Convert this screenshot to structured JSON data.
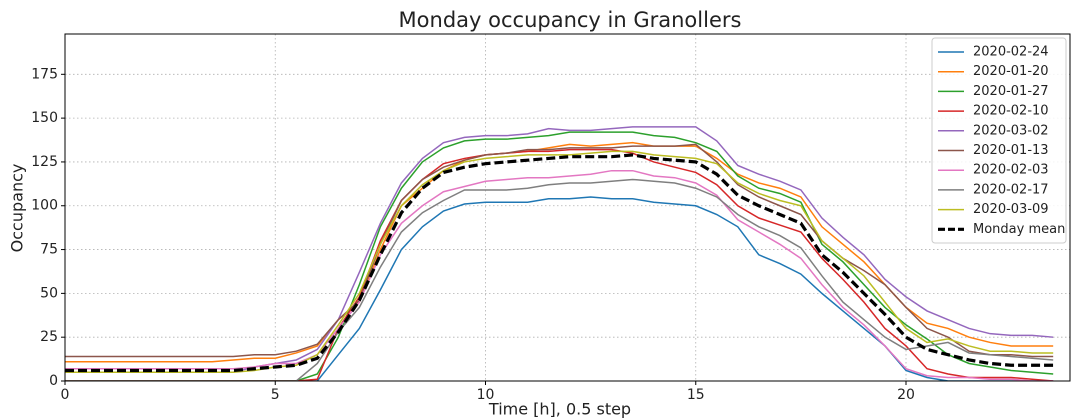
{
  "chart_data": {
    "type": "line",
    "title": "Monday occupancy in Granollers",
    "x_label": "Time [h], 0.5 step",
    "y_label": "Occupancy",
    "x": [
      0,
      0.5,
      1,
      1.5,
      2,
      2.5,
      3,
      3.5,
      4,
      4.5,
      5,
      5.5,
      6,
      6.5,
      7,
      7.5,
      8,
      8.5,
      9,
      9.5,
      10,
      10.5,
      11,
      11.5,
      12,
      12.5,
      13,
      13.5,
      14,
      14.5,
      15,
      15.5,
      16,
      16.5,
      17,
      17.5,
      18,
      18.5,
      19,
      19.5,
      20,
      20.5,
      21,
      21.5,
      22,
      22.5,
      23,
      23.5
    ],
    "xlim": [
      0,
      23.9
    ],
    "xticks": [
      0,
      5,
      10,
      15,
      20
    ],
    "ylim": [
      0,
      198
    ],
    "yticks": [
      0,
      25,
      50,
      75,
      100,
      125,
      150,
      175
    ],
    "grid": true,
    "legend": "upper right",
    "series": [
      {
        "name": "2020-02-24",
        "color": "#1f77b4",
        "values": [
          0,
          0,
          0,
          0,
          0,
          0,
          0,
          0,
          0,
          0,
          0,
          0,
          0,
          15,
          30,
          52,
          75,
          88,
          97,
          101,
          102,
          102,
          102,
          104,
          104,
          105,
          104,
          104,
          102,
          101,
          100,
          95,
          88,
          72,
          67,
          61,
          50,
          40,
          30,
          20,
          6,
          2,
          0,
          0,
          0,
          0,
          0,
          0
        ]
      },
      {
        "name": "2020-01-20",
        "color": "#ff7f0e",
        "values": [
          11,
          11,
          11,
          11,
          11,
          11,
          11,
          11,
          12,
          13,
          13,
          16,
          20,
          35,
          45,
          75,
          100,
          110,
          120,
          126,
          129,
          130,
          131,
          133,
          135,
          134,
          135,
          136,
          134,
          134,
          134,
          127,
          118,
          113,
          110,
          105,
          88,
          78,
          68,
          55,
          42,
          33,
          30,
          25,
          22,
          20,
          20,
          20
        ]
      },
      {
        "name": "2020-01-27",
        "color": "#2ca02c",
        "values": [
          0,
          0,
          0,
          0,
          0,
          0,
          0,
          0,
          0,
          0,
          0,
          0,
          4,
          25,
          55,
          88,
          110,
          125,
          133,
          137,
          138,
          138,
          139,
          140,
          142,
          142,
          142,
          142,
          140,
          139,
          136,
          131,
          117,
          110,
          107,
          102,
          78,
          68,
          55,
          42,
          32,
          24,
          15,
          10,
          8,
          6,
          5,
          4
        ]
      },
      {
        "name": "2020-02-10",
        "color": "#d62728",
        "values": [
          0,
          0,
          0,
          0,
          0,
          0,
          0,
          0,
          0,
          0,
          0,
          0,
          1,
          30,
          48,
          80,
          103,
          115,
          124,
          127,
          129,
          130,
          131,
          131,
          132,
          132,
          132,
          130,
          125,
          122,
          119,
          112,
          100,
          93,
          89,
          85,
          70,
          58,
          45,
          30,
          20,
          7,
          4,
          2,
          2,
          2,
          1,
          0
        ]
      },
      {
        "name": "2020-03-02",
        "color": "#9467bd",
        "values": [
          5,
          5,
          5,
          5,
          5,
          5,
          5,
          5,
          5,
          8,
          10,
          12,
          18,
          35,
          62,
          90,
          113,
          127,
          136,
          139,
          140,
          140,
          141,
          144,
          143,
          143,
          144,
          145,
          145,
          145,
          145,
          137,
          123,
          118,
          114,
          109,
          93,
          82,
          72,
          58,
          48,
          40,
          35,
          30,
          27,
          26,
          26,
          25
        ]
      },
      {
        "name": "2020-01-13",
        "color": "#8c564b",
        "values": [
          14,
          14,
          14,
          14,
          14,
          14,
          14,
          14,
          14,
          15,
          15,
          17,
          21,
          35,
          46,
          78,
          103,
          115,
          122,
          126,
          129,
          130,
          132,
          132,
          133,
          133,
          133,
          134,
          134,
          134,
          135,
          125,
          112,
          105,
          100,
          95,
          80,
          70,
          63,
          55,
          42,
          30,
          25,
          17,
          15,
          15,
          14,
          14
        ]
      },
      {
        "name": "2020-02-03",
        "color": "#e377c2",
        "values": [
          7,
          7,
          7,
          7,
          7,
          7,
          7,
          7,
          7,
          8,
          10,
          10,
          15,
          30,
          45,
          72,
          90,
          100,
          108,
          111,
          114,
          115,
          116,
          116,
          117,
          118,
          120,
          120,
          117,
          116,
          113,
          106,
          92,
          85,
          78,
          70,
          55,
          42,
          32,
          20,
          7,
          3,
          2,
          2,
          1,
          1,
          0,
          0
        ]
      },
      {
        "name": "2020-02-17",
        "color": "#7f7f7f",
        "values": [
          0,
          0,
          0,
          0,
          0,
          0,
          0,
          0,
          0,
          0,
          0,
          0,
          10,
          28,
          42,
          65,
          85,
          96,
          103,
          109,
          109,
          109,
          110,
          112,
          113,
          113,
          114,
          115,
          114,
          113,
          110,
          105,
          95,
          88,
          83,
          76,
          60,
          45,
          35,
          25,
          18,
          20,
          22,
          16,
          15,
          14,
          13,
          12
        ]
      },
      {
        "name": "2020-03-09",
        "color": "#bcbd22",
        "values": [
          5,
          5,
          5,
          5,
          5,
          5,
          5,
          5,
          5,
          6,
          8,
          9,
          15,
          32,
          50,
          78,
          100,
          112,
          120,
          125,
          127,
          128,
          129,
          129,
          129,
          130,
          131,
          131,
          129,
          128,
          127,
          124,
          113,
          107,
          103,
          100,
          80,
          70,
          60,
          45,
          30,
          22,
          24,
          20,
          17,
          17,
          16,
          16
        ]
      },
      {
        "name": "Monday mean",
        "color": "#000000",
        "linestyle": "dashed",
        "values": [
          6,
          6,
          6,
          6,
          6,
          6,
          6,
          6,
          6,
          7,
          8,
          9,
          13,
          28,
          46,
          72,
          96,
          110,
          119,
          122,
          124,
          125,
          126,
          127,
          128,
          128,
          128,
          129,
          127,
          126,
          125,
          118,
          106,
          100,
          95,
          90,
          72,
          62,
          50,
          38,
          25,
          18,
          15,
          12,
          10,
          9,
          9,
          9
        ]
      }
    ]
  }
}
